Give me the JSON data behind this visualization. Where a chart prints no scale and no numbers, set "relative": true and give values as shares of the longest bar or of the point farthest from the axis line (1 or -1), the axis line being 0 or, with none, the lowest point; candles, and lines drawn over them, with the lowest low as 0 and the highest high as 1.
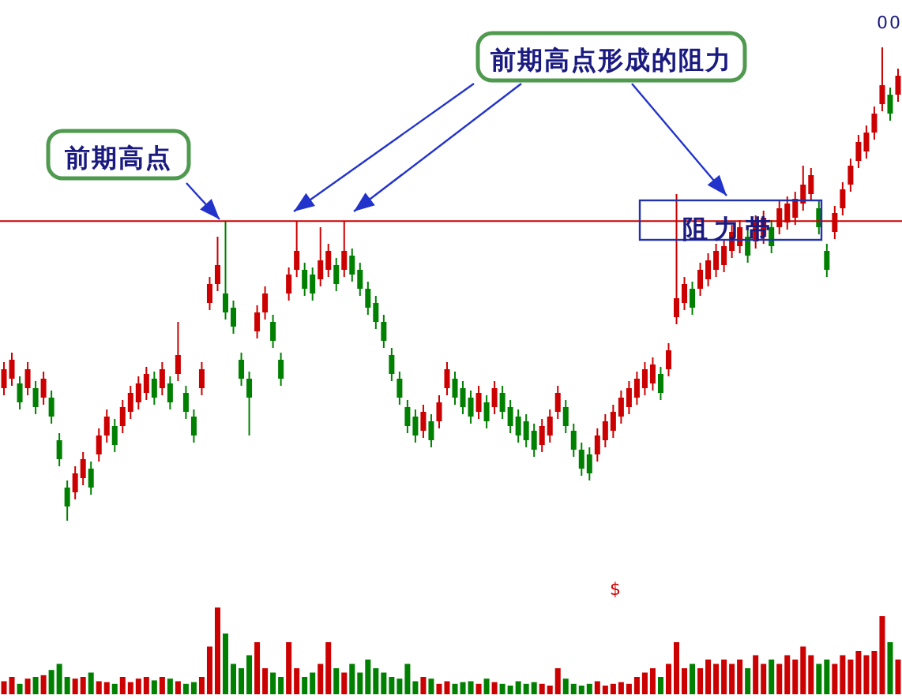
{
  "chart_data": [
    {
      "type": "candlestick",
      "relative": true,
      "categories": [
        null,
        null,
        null,
        null,
        null,
        null,
        null,
        null,
        null,
        null,
        null,
        null,
        null,
        null,
        null,
        null,
        null,
        null,
        null,
        null,
        null,
        null,
        null,
        null,
        null,
        null,
        null,
        null,
        null,
        null,
        null,
        null,
        null,
        null,
        null,
        null,
        null,
        null,
        null,
        null,
        null,
        null,
        null,
        null,
        null,
        null,
        null,
        null,
        null,
        null,
        null,
        null,
        null,
        null,
        null,
        null,
        null,
        null,
        null,
        null,
        null,
        null,
        null,
        null,
        null,
        null,
        null,
        null,
        null,
        null,
        null,
        null,
        null,
        null,
        null,
        null,
        null,
        null,
        null,
        null,
        null,
        null,
        null,
        null,
        null,
        null,
        null,
        null,
        null,
        null,
        null,
        null,
        null,
        null,
        null,
        null,
        null,
        null,
        null,
        null,
        null,
        null,
        null,
        null,
        null,
        null,
        null,
        null,
        null,
        null,
        null,
        null,
        null,
        null
      ],
      "ohlc": [
        [
          0.28,
          0.335,
          0.265,
          0.32
        ],
        [
          0.3,
          0.355,
          0.285,
          0.34
        ],
        [
          0.29,
          0.305,
          0.235,
          0.25
        ],
        [
          0.28,
          0.335,
          0.265,
          0.32
        ],
        [
          0.28,
          0.295,
          0.225,
          0.24
        ],
        [
          0.26,
          0.315,
          0.245,
          0.3
        ],
        [
          0.26,
          0.275,
          0.205,
          0.22
        ],
        [
          0.17,
          0.185,
          0.115,
          0.13
        ],
        [
          0.07,
          0.085,
          0,
          0.03
        ],
        [
          0.06,
          0.115,
          0.045,
          0.1
        ],
        [
          0.09,
          0.145,
          0.075,
          0.13
        ],
        [
          0.11,
          0.125,
          0.055,
          0.07
        ],
        [
          0.14,
          0.195,
          0.125,
          0.18
        ],
        [
          0.18,
          0.235,
          0.165,
          0.22
        ],
        [
          0.2,
          0.215,
          0.145,
          0.16
        ],
        [
          0.2,
          0.255,
          0.185,
          0.24
        ],
        [
          0.23,
          0.285,
          0.215,
          0.27
        ],
        [
          0.25,
          0.305,
          0.235,
          0.29
        ],
        [
          0.27,
          0.325,
          0.255,
          0.31
        ],
        [
          0.3,
          0.315,
          0.245,
          0.26
        ],
        [
          0.28,
          0.335,
          0.265,
          0.32
        ],
        [
          0.29,
          0.305,
          0.235,
          0.25
        ],
        [
          0.31,
          0.42,
          0.295,
          0.35
        ],
        [
          0.27,
          0.285,
          0.215,
          0.23
        ],
        [
          0.22,
          0.235,
          0.165,
          0.18
        ],
        [
          0.28,
          0.335,
          0.265,
          0.32
        ],
        [
          0.46,
          0.515,
          0.445,
          0.5
        ],
        [
          0.5,
          0.6,
          0.485,
          0.54
        ],
        [
          0.48,
          0.633,
          0.425,
          0.44
        ],
        [
          0.45,
          0.465,
          0.395,
          0.41
        ],
        [
          0.34,
          0.355,
          0.285,
          0.3
        ],
        [
          0.3,
          0.315,
          0.18,
          0.26
        ],
        [
          0.4,
          0.455,
          0.385,
          0.44
        ],
        [
          0.44,
          0.495,
          0.425,
          0.48
        ],
        [
          0.42,
          0.435,
          0.365,
          0.38
        ],
        [
          0.34,
          0.355,
          0.285,
          0.3
        ],
        [
          0.48,
          0.535,
          0.465,
          0.52
        ],
        [
          0.53,
          0.633,
          0.515,
          0.57
        ],
        [
          0.53,
          0.545,
          0.475,
          0.49
        ],
        [
          0.52,
          0.535,
          0.465,
          0.48
        ],
        [
          0.51,
          0.62,
          0.495,
          0.55
        ],
        [
          0.53,
          0.585,
          0.515,
          0.57
        ],
        [
          0.54,
          0.555,
          0.485,
          0.5
        ],
        [
          0.53,
          0.633,
          0.515,
          0.57
        ],
        [
          0.56,
          0.575,
          0.505,
          0.52
        ],
        [
          0.53,
          0.545,
          0.475,
          0.49
        ],
        [
          0.49,
          0.505,
          0.435,
          0.45
        ],
        [
          0.46,
          0.475,
          0.405,
          0.42
        ],
        [
          0.42,
          0.435,
          0.365,
          0.38
        ],
        [
          0.35,
          0.365,
          0.295,
          0.31
        ],
        [
          0.3,
          0.315,
          0.245,
          0.26
        ],
        [
          0.24,
          0.255,
          0.185,
          0.2
        ],
        [
          0.22,
          0.235,
          0.165,
          0.18
        ],
        [
          0.19,
          0.245,
          0.175,
          0.23
        ],
        [
          0.21,
          0.225,
          0.155,
          0.17
        ],
        [
          0.21,
          0.265,
          0.195,
          0.25
        ],
        [
          0.28,
          0.335,
          0.265,
          0.32
        ],
        [
          0.3,
          0.315,
          0.245,
          0.26
        ],
        [
          0.28,
          0.295,
          0.225,
          0.24
        ],
        [
          0.26,
          0.275,
          0.205,
          0.22
        ],
        [
          0.23,
          0.285,
          0.215,
          0.27
        ],
        [
          0.25,
          0.265,
          0.195,
          0.21
        ],
        [
          0.24,
          0.295,
          0.225,
          0.28
        ],
        [
          0.27,
          0.285,
          0.215,
          0.23
        ],
        [
          0.24,
          0.255,
          0.185,
          0.2
        ],
        [
          0.22,
          0.235,
          0.165,
          0.18
        ],
        [
          0.21,
          0.225,
          0.155,
          0.17
        ],
        [
          0.19,
          0.205,
          0.135,
          0.15
        ],
        [
          0.16,
          0.215,
          0.145,
          0.2
        ],
        [
          0.18,
          0.235,
          0.165,
          0.22
        ],
        [
          0.23,
          0.285,
          0.215,
          0.27
        ],
        [
          0.24,
          0.255,
          0.185,
          0.2
        ],
        [
          0.19,
          0.205,
          0.135,
          0.15
        ],
        [
          0.15,
          0.165,
          0.095,
          0.11
        ],
        [
          0.14,
          0.155,
          0.085,
          0.1
        ],
        [
          0.14,
          0.195,
          0.125,
          0.18
        ],
        [
          0.17,
          0.225,
          0.155,
          0.21
        ],
        [
          0.19,
          0.245,
          0.175,
          0.23
        ],
        [
          0.22,
          0.275,
          0.205,
          0.26
        ],
        [
          0.24,
          0.295,
          0.225,
          0.28
        ],
        [
          0.26,
          0.315,
          0.245,
          0.3
        ],
        [
          0.28,
          0.335,
          0.265,
          0.32
        ],
        [
          0.29,
          0.345,
          0.275,
          0.33
        ],
        [
          0.31,
          0.325,
          0.255,
          0.27
        ],
        [
          0.32,
          0.375,
          0.305,
          0.36
        ],
        [
          0.43,
          0.69,
          0.415,
          0.47
        ],
        [
          0.46,
          0.515,
          0.445,
          0.5
        ],
        [
          0.49,
          0.505,
          0.435,
          0.45
        ],
        [
          0.49,
          0.545,
          0.475,
          0.53
        ],
        [
          0.51,
          0.565,
          0.495,
          0.55
        ],
        [
          0.53,
          0.585,
          0.515,
          0.57
        ],
        [
          0.54,
          0.595,
          0.525,
          0.58
        ],
        [
          0.57,
          0.625,
          0.555,
          0.61
        ],
        [
          0.58,
          0.635,
          0.565,
          0.62
        ],
        [
          0.6,
          0.615,
          0.545,
          0.56
        ],
        [
          0.59,
          0.645,
          0.575,
          0.63
        ],
        [
          0.6,
          0.655,
          0.585,
          0.64
        ],
        [
          0.62,
          0.635,
          0.565,
          0.58
        ],
        [
          0.62,
          0.675,
          0.605,
          0.66
        ],
        [
          0.63,
          0.685,
          0.615,
          0.67
        ],
        [
          0.64,
          0.695,
          0.625,
          0.68
        ],
        [
          0.67,
          0.75,
          0.655,
          0.71
        ],
        [
          0.69,
          0.745,
          0.675,
          0.73
        ],
        [
          0.66,
          0.675,
          0.605,
          0.62
        ],
        [
          0.57,
          0.585,
          0.515,
          0.53
        ],
        [
          0.61,
          0.665,
          0.595,
          0.65
        ],
        [
          0.66,
          0.715,
          0.645,
          0.7
        ],
        [
          0.71,
          0.765,
          0.695,
          0.75
        ],
        [
          0.76,
          0.815,
          0.745,
          0.8
        ],
        [
          0.78,
          0.835,
          0.765,
          0.82
        ],
        [
          0.82,
          0.875,
          0.805,
          0.86
        ],
        [
          0.88,
          1.0,
          0.865,
          0.92
        ],
        [
          0.9,
          0.915,
          0.845,
          0.86
        ],
        [
          0.9,
          0.955,
          0.885,
          0.94
        ]
      ],
      "colors": [
        "#cc0000",
        "#cc0000",
        "#008000",
        "#cc0000",
        "#008000",
        "#cc0000",
        "#008000",
        "#008000",
        "#008000",
        "#cc0000",
        "#cc0000",
        "#008000",
        "#cc0000",
        "#cc0000",
        "#008000",
        "#cc0000",
        "#cc0000",
        "#cc0000",
        "#cc0000",
        "#008000",
        "#cc0000",
        "#008000",
        "#cc0000",
        "#008000",
        "#008000",
        "#cc0000",
        "#cc0000",
        "#cc0000",
        "#008000",
        "#008000",
        "#008000",
        "#008000",
        "#cc0000",
        "#cc0000",
        "#008000",
        "#008000",
        "#cc0000",
        "#cc0000",
        "#008000",
        "#008000",
        "#cc0000",
        "#cc0000",
        "#008000",
        "#cc0000",
        "#008000",
        "#008000",
        "#008000",
        "#008000",
        "#008000",
        "#008000",
        "#008000",
        "#008000",
        "#008000",
        "#cc0000",
        "#008000",
        "#cc0000",
        "#cc0000",
        "#008000",
        "#008000",
        "#008000",
        "#cc0000",
        "#008000",
        "#cc0000",
        "#008000",
        "#008000",
        "#008000",
        "#008000",
        "#008000",
        "#cc0000",
        "#cc0000",
        "#cc0000",
        "#008000",
        "#008000",
        "#008000",
        "#008000",
        "#cc0000",
        "#cc0000",
        "#cc0000",
        "#cc0000",
        "#cc0000",
        "#cc0000",
        "#cc0000",
        "#cc0000",
        "#008000",
        "#cc0000",
        "#cc0000",
        "#cc0000",
        "#008000",
        "#cc0000",
        "#cc0000",
        "#cc0000",
        "#cc0000",
        "#cc0000",
        "#cc0000",
        "#008000",
        "#cc0000",
        "#cc0000",
        "#008000",
        "#cc0000",
        "#cc0000",
        "#cc0000",
        "#cc0000",
        "#cc0000",
        "#008000",
        "#008000",
        "#cc0000",
        "#cc0000",
        "#cc0000",
        "#cc0000",
        "#cc0000",
        "#cc0000",
        "#cc0000",
        "#008000",
        "#cc0000"
      ],
      "ref_lines": [
        {
          "axis": "y",
          "value": 0.633,
          "color": "#cc0000"
        }
      ],
      "annotations": [
        "前期高点",
        "前期高点形成的阻力",
        "阻力带",
        "00"
      ]
    },
    {
      "type": "bar",
      "relative": true,
      "categories": [
        null,
        null,
        null,
        null,
        null,
        null,
        null,
        null,
        null,
        null,
        null,
        null,
        null,
        null,
        null,
        null,
        null,
        null,
        null,
        null,
        null,
        null,
        null,
        null,
        null,
        null,
        null,
        null,
        null,
        null,
        null,
        null,
        null,
        null,
        null,
        null,
        null,
        null,
        null,
        null,
        null,
        null,
        null,
        null,
        null,
        null,
        null,
        null,
        null,
        null,
        null,
        null,
        null,
        null,
        null,
        null,
        null,
        null,
        null,
        null,
        null,
        null,
        null,
        null,
        null,
        null,
        null,
        null,
        null,
        null,
        null,
        null,
        null,
        null,
        null,
        null,
        null,
        null,
        null,
        null,
        null,
        null,
        null,
        null,
        null,
        null,
        null,
        null,
        null,
        null,
        null,
        null,
        null,
        null,
        null,
        null,
        null,
        null,
        null,
        null,
        null,
        null,
        null,
        null,
        null,
        null,
        null,
        null,
        null,
        null,
        null,
        null,
        null,
        null
      ],
      "values": [
        0.15,
        0.2,
        0.12,
        0.18,
        0.2,
        0.22,
        0.28,
        0.35,
        0.2,
        0.18,
        0.2,
        0.25,
        0.15,
        0.14,
        0.12,
        0.2,
        0.14,
        0.18,
        0.2,
        0.16,
        0.2,
        0.18,
        0.15,
        0.12,
        0.14,
        0.2,
        0.55,
        1.0,
        0.7,
        0.35,
        0.3,
        0.45,
        0.6,
        0.3,
        0.25,
        0.2,
        0.6,
        0.3,
        0.2,
        0.25,
        0.35,
        0.6,
        0.3,
        0.25,
        0.35,
        0.25,
        0.4,
        0.3,
        0.25,
        0.2,
        0.18,
        0.35,
        0.15,
        0.2,
        0.18,
        0.12,
        0.15,
        0.12,
        0.14,
        0.15,
        0.12,
        0.18,
        0.14,
        0.12,
        0.1,
        0.15,
        0.12,
        0.14,
        0.12,
        0.1,
        0.3,
        0.18,
        0.12,
        0.1,
        0.12,
        0.15,
        0.1,
        0.12,
        0.14,
        0.12,
        0.2,
        0.25,
        0.3,
        0.2,
        0.35,
        0.6,
        0.3,
        0.35,
        0.3,
        0.4,
        0.35,
        0.4,
        0.35,
        0.4,
        0.3,
        0.45,
        0.35,
        0.4,
        0.35,
        0.45,
        0.4,
        0.55,
        0.45,
        0.35,
        0.4,
        0.35,
        0.45,
        0.4,
        0.5,
        0.45,
        0.5,
        0.9,
        0.6,
        0.4
      ],
      "colors": [
        "#cc0000",
        "#cc0000",
        "#008000",
        "#cc0000",
        "#008000",
        "#cc0000",
        "#008000",
        "#008000",
        "#008000",
        "#cc0000",
        "#cc0000",
        "#008000",
        "#cc0000",
        "#cc0000",
        "#008000",
        "#cc0000",
        "#cc0000",
        "#cc0000",
        "#cc0000",
        "#008000",
        "#cc0000",
        "#008000",
        "#cc0000",
        "#008000",
        "#008000",
        "#cc0000",
        "#cc0000",
        "#cc0000",
        "#008000",
        "#008000",
        "#008000",
        "#008000",
        "#cc0000",
        "#cc0000",
        "#008000",
        "#008000",
        "#cc0000",
        "#cc0000",
        "#008000",
        "#008000",
        "#cc0000",
        "#cc0000",
        "#008000",
        "#cc0000",
        "#008000",
        "#008000",
        "#008000",
        "#008000",
        "#008000",
        "#008000",
        "#008000",
        "#008000",
        "#008000",
        "#cc0000",
        "#008000",
        "#cc0000",
        "#cc0000",
        "#008000",
        "#008000",
        "#008000",
        "#cc0000",
        "#008000",
        "#cc0000",
        "#008000",
        "#008000",
        "#008000",
        "#008000",
        "#008000",
        "#cc0000",
        "#cc0000",
        "#cc0000",
        "#008000",
        "#008000",
        "#008000",
        "#008000",
        "#cc0000",
        "#cc0000",
        "#cc0000",
        "#cc0000",
        "#cc0000",
        "#cc0000",
        "#cc0000",
        "#cc0000",
        "#008000",
        "#cc0000",
        "#cc0000",
        "#cc0000",
        "#008000",
        "#cc0000",
        "#cc0000",
        "#cc0000",
        "#cc0000",
        "#cc0000",
        "#cc0000",
        "#008000",
        "#cc0000",
        "#cc0000",
        "#008000",
        "#cc0000",
        "#cc0000",
        "#cc0000",
        "#cc0000",
        "#cc0000",
        "#008000",
        "#008000",
        "#cc0000",
        "#cc0000",
        "#cc0000",
        "#cc0000",
        "#cc0000",
        "#cc0000",
        "#cc0000",
        "#008000",
        "#cc0000"
      ],
      "annotations": [
        "$"
      ]
    }
  ]
}
